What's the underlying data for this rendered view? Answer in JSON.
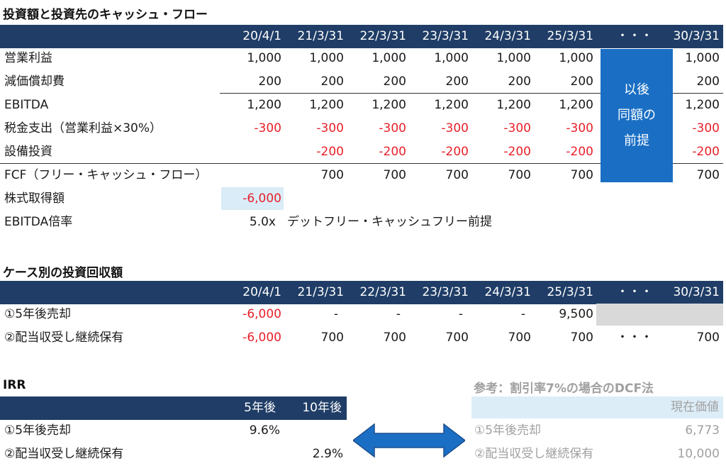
{
  "section1": {
    "title": "投資額と投資先のキャッシュ・フロー",
    "headers": [
      "20/4/1",
      "21/3/31",
      "22/3/31",
      "23/3/31",
      "24/3/31",
      "25/3/31",
      "・・・",
      "30/3/31"
    ],
    "rows": [
      {
        "label": "営業利益",
        "cells": [
          "1,000",
          "1,000",
          "1,000",
          "1,000",
          "1,000",
          "1,000",
          "",
          "1,000"
        ]
      },
      {
        "label": "減価償却費",
        "cells": [
          "200",
          "200",
          "200",
          "200",
          "200",
          "200",
          "",
          "200"
        ]
      },
      {
        "label": "EBITDA",
        "cells": [
          "1,200",
          "1,200",
          "1,200",
          "1,200",
          "1,200",
          "1,200",
          "",
          "1,200"
        ]
      },
      {
        "label": "税金支出（営業利益×30%）",
        "cells": [
          "-300",
          "-300",
          "-300",
          "-300",
          "-300",
          "-300",
          "",
          "-300"
        ]
      },
      {
        "label": "設備投資",
        "cells": [
          "",
          "-200",
          "-200",
          "-200",
          "-200",
          "-200",
          "",
          "-200"
        ]
      },
      {
        "label": "FCF（フリー・キャッシュ・フロー）",
        "cells": [
          "",
          "700",
          "700",
          "700",
          "700",
          "700",
          "",
          "700"
        ]
      },
      {
        "label": "株式取得額",
        "cells": [
          "-6,000",
          "",
          "",
          "",
          "",
          "",
          "",
          ""
        ]
      },
      {
        "label": "EBITDA倍率",
        "cells": [
          "5.0x",
          "",
          "",
          "",
          "",
          "",
          "",
          ""
        ]
      }
    ],
    "note": "デットフリー・キャッシュフリー前提",
    "callout": [
      "以後",
      "同額の",
      "前提"
    ],
    "colors": {
      "header": "#1f3d66",
      "callout": "#1a6fc4",
      "negative": "#e8202a",
      "highlight": "#d9ecf7"
    }
  },
  "section2": {
    "title": "ケース別の投資回収額",
    "headers": [
      "20/4/1",
      "21/3/31",
      "22/3/31",
      "23/3/31",
      "24/3/31",
      "25/3/31",
      "・・・",
      "30/3/31"
    ],
    "rows": [
      {
        "label": "①5年後売却",
        "cells": [
          "-6,000",
          "-",
          "-",
          "-",
          "-",
          "9,500",
          "",
          ""
        ]
      },
      {
        "label": "②配当収受し継続保有",
        "cells": [
          "-6,000",
          "700",
          "700",
          "700",
          "700",
          "700",
          "・・・",
          "700"
        ]
      }
    ]
  },
  "irr": {
    "title": "IRR",
    "headers": [
      "5年後",
      "10年後"
    ],
    "rows": [
      {
        "label": "①5年後売却",
        "cells": [
          "9.6%",
          ""
        ]
      },
      {
        "label": "②配当収受し継続保有",
        "cells": [
          "",
          "2.9%"
        ]
      }
    ]
  },
  "dcf": {
    "title": "参考：割引率7%の場合のDCF法",
    "header": "現在価値",
    "rows": [
      {
        "label": "①5年後売却",
        "value": "6,773"
      },
      {
        "label": "②配当収受し継続保有",
        "value": "10,000"
      }
    ]
  },
  "arrow": {
    "icon": "double-arrow-icon",
    "color": "#1a6fc4"
  }
}
